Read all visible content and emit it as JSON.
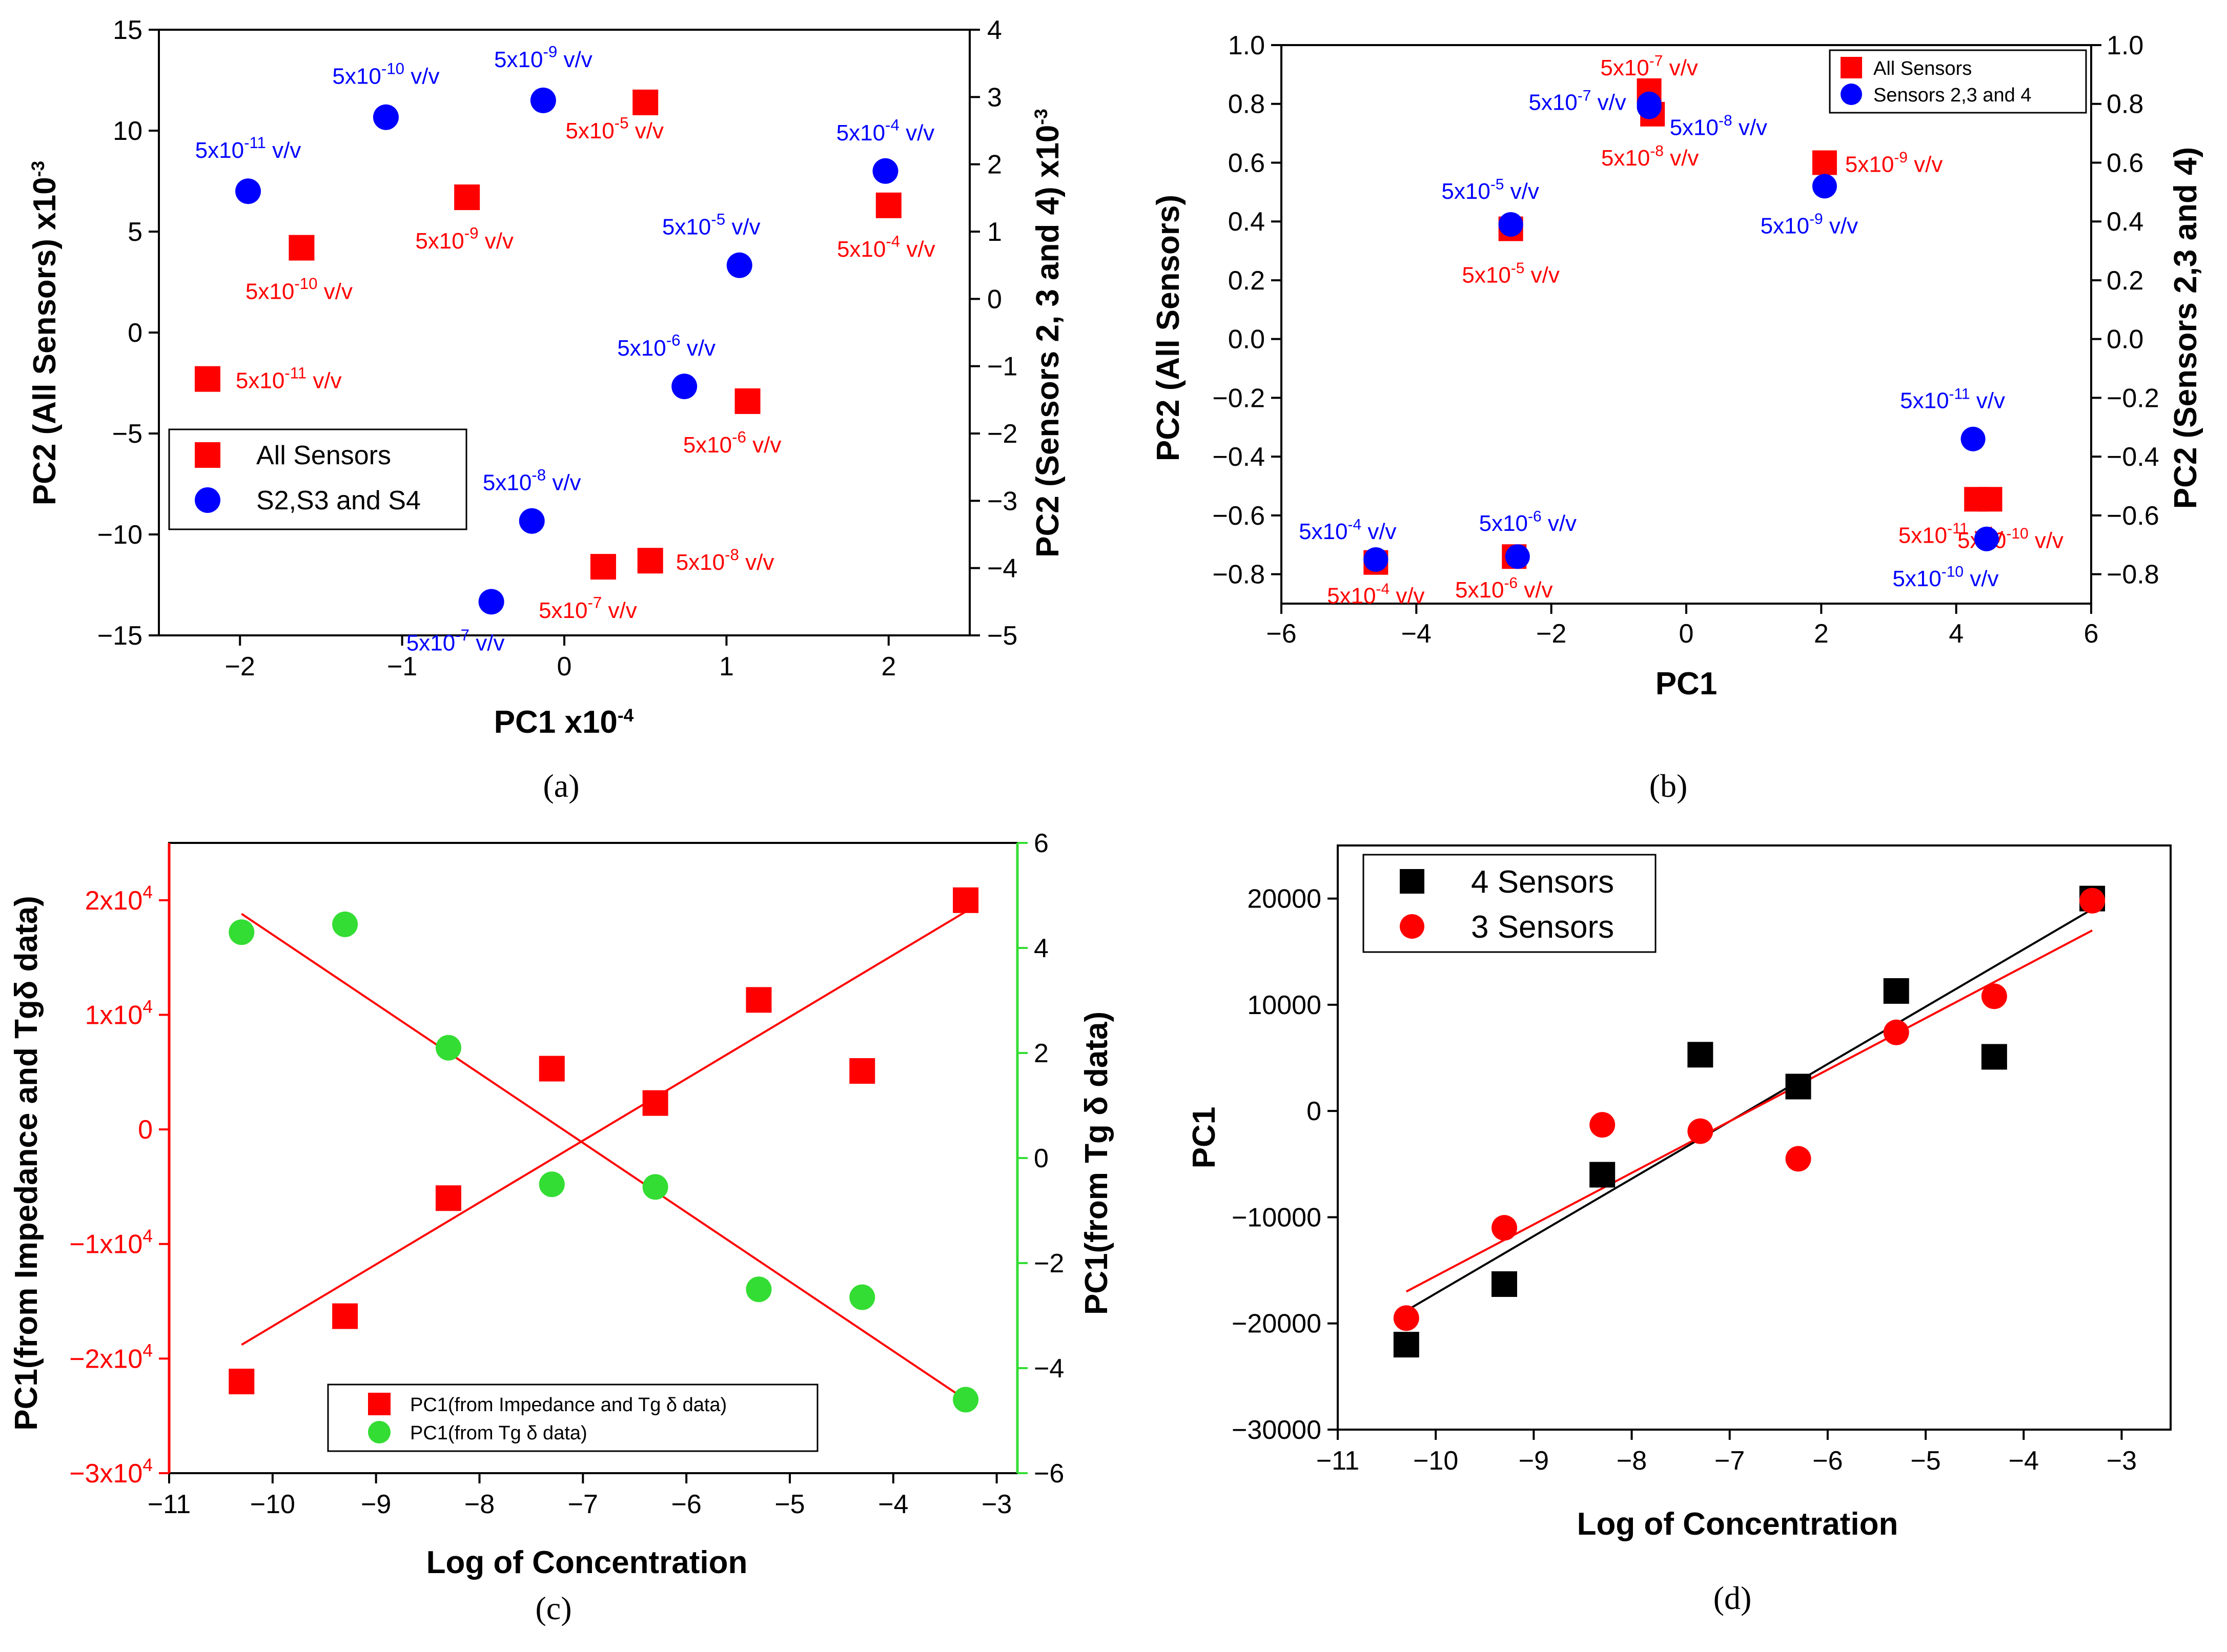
{
  "chart_data": [
    {
      "panel": "a",
      "type": "scatter",
      "caption": "(a)",
      "xlabel": "PC1 x10",
      "xlabel_exp": "-4",
      "ylabel": "PC2 (All Sensors) x10",
      "ylabel_exp": "-3",
      "y2label": "PC2 (Sensors 2, 3 and 4) x10",
      "y2label_exp": "-3",
      "xlim": [
        -2.5,
        2.5
      ],
      "ylim": [
        -15,
        15
      ],
      "y2lim": [
        -5,
        4
      ],
      "xticks": [
        -2,
        -1,
        0,
        1,
        2
      ],
      "yticks": [
        -15,
        -10,
        -5,
        0,
        5,
        10,
        15
      ],
      "y2ticks": [
        -5,
        -4,
        -3,
        -2,
        -1,
        0,
        1,
        2,
        3,
        4
      ],
      "legend": [
        "All Sensors",
        "S2,S3 and S4"
      ],
      "series": [
        {
          "name": "All Sensors",
          "marker": "square",
          "color": "#ff0000",
          "axis": "left",
          "points": [
            {
              "x": -2.2,
              "y": -2.3,
              "label": "5x10",
              "exp": "-11",
              "unit": " v/v"
            },
            {
              "x": -1.62,
              "y": 4.2,
              "label": "5x10",
              "exp": "-10",
              "unit": " v/v"
            },
            {
              "x": -0.6,
              "y": 6.7,
              "label": "5x10",
              "exp": "-9",
              "unit": " v/v"
            },
            {
              "x": 0.5,
              "y": 11.4,
              "label": "5x10",
              "exp": "-5",
              "unit": " v/v"
            },
            {
              "x": 2.0,
              "y": 6.3,
              "label": "5x10",
              "exp": "-4",
              "unit": " v/v"
            },
            {
              "x": 1.13,
              "y": -3.4,
              "label": "5x10",
              "exp": "-6",
              "unit": " v/v"
            },
            {
              "x": 0.24,
              "y": -11.6,
              "label": "5x10",
              "exp": "-7",
              "unit": " v/v"
            },
            {
              "x": 0.53,
              "y": -11.3,
              "label": "5x10",
              "exp": "-8",
              "unit": " v/v"
            }
          ]
        },
        {
          "name": "S2,S3 and S4",
          "marker": "circle",
          "color": "#0000ff",
          "axis": "right",
          "points": [
            {
              "x": -1.95,
              "y": 1.6,
              "label": "5x10",
              "exp": "-11",
              "unit": " v/v"
            },
            {
              "x": -1.1,
              "y": 2.7,
              "label": "5x10",
              "exp": "-10",
              "unit": " v/v"
            },
            {
              "x": -0.13,
              "y": 2.95,
              "label": "5x10",
              "exp": "-9",
              "unit": " v/v"
            },
            {
              "x": 1.98,
              "y": 1.9,
              "label": "5x10",
              "exp": "-4",
              "unit": " v/v"
            },
            {
              "x": 1.08,
              "y": 0.5,
              "label": "5x10",
              "exp": "-5",
              "unit": " v/v"
            },
            {
              "x": 0.74,
              "y": -1.3,
              "label": "5x10",
              "exp": "-6",
              "unit": " v/v"
            },
            {
              "x": -0.2,
              "y": -3.3,
              "label": "5x10",
              "exp": "-8",
              "unit": " v/v"
            },
            {
              "x": -0.45,
              "y": -4.5,
              "label": "5x10",
              "exp": "-7",
              "unit": " v/v"
            }
          ]
        }
      ]
    },
    {
      "panel": "b",
      "type": "scatter",
      "caption": "(b)",
      "xlabel": "PC1",
      "ylabel": "PC2 (All Sensors)",
      "y2label": "PC2 (Sensors 2,3 and 4)",
      "xlim": [
        -6,
        6
      ],
      "ylim": [
        -0.9,
        1.0
      ],
      "y2lim": [
        -0.9,
        1.0
      ],
      "xticks": [
        -6,
        -4,
        -2,
        0,
        2,
        4,
        6
      ],
      "yticks": [
        "1.0",
        "0.8",
        "0.6",
        "0.4",
        "0.2",
        "0.0",
        "-0.2",
        "-0.4",
        "-0.6",
        "-0.8"
      ],
      "y2ticks": [
        "1.0",
        "0.8",
        "0.6",
        "0.4",
        "0.2",
        "0.0",
        "-0.2",
        "-0.4",
        "-0.6",
        "-0.8"
      ],
      "legend": [
        "All Sensors",
        "Sensors 2,3 and 4"
      ],
      "series": [
        {
          "name": "All Sensors",
          "marker": "square",
          "color": "#ff0000",
          "points": [
            {
              "x": -0.55,
              "y": 0.845,
              "label": "5x10",
              "exp": "-7",
              "unit": " v/v"
            },
            {
              "x": -0.5,
              "y": 0.765,
              "label": "5x10",
              "exp": "-8",
              "unit": " v/v"
            },
            {
              "x": 2.05,
              "y": 0.6,
              "label": "5x10",
              "exp": "-9",
              "unit": " v/v"
            },
            {
              "x": -2.6,
              "y": 0.375,
              "label": "5x10",
              "exp": "-5",
              "unit": " v/v"
            },
            {
              "x": -4.6,
              "y": -0.76,
              "label": "5x10",
              "exp": "-4",
              "unit": " v/v"
            },
            {
              "x": -2.55,
              "y": -0.74,
              "label": "5x10",
              "exp": "-6",
              "unit": " v/v"
            },
            {
              "x": 4.3,
              "y": -0.545,
              "label": "5x10",
              "exp": "-11",
              "unit": " v/v"
            },
            {
              "x": 4.5,
              "y": -0.545,
              "label": "5x10",
              "exp": "-10",
              "unit": " v/v"
            }
          ]
        },
        {
          "name": "Sensors 2,3 and 4",
          "marker": "circle",
          "color": "#0000ff",
          "points": [
            {
              "x": -0.55,
              "y": 0.8,
              "label": "5x10",
              "exp": "-7",
              "unit": " v/v"
            },
            {
              "x": -0.55,
              "y": 0.79,
              "label": "5x10",
              "exp": "-8",
              "unit": " v/v"
            },
            {
              "x": 2.05,
              "y": 0.52,
              "label": "5x10",
              "exp": "-9",
              "unit": " v/v"
            },
            {
              "x": -2.6,
              "y": 0.39,
              "label": "5x10",
              "exp": "-5",
              "unit": " v/v"
            },
            {
              "x": -4.6,
              "y": -0.75,
              "label": "5x10",
              "exp": "-4",
              "unit": " v/v"
            },
            {
              "x": -2.5,
              "y": -0.74,
              "label": "5x10",
              "exp": "-6",
              "unit": " v/v"
            },
            {
              "x": 4.25,
              "y": -0.34,
              "label": "5x10",
              "exp": "-11",
              "unit": " v/v"
            },
            {
              "x": 4.45,
              "y": -0.68,
              "label": "5x10",
              "exp": "-10",
              "unit": " v/v"
            }
          ]
        }
      ]
    },
    {
      "panel": "c",
      "type": "scatter",
      "caption": "(c)",
      "xlabel": "Log of Concentration",
      "ylabel": "PC1(from Impedance and Tgδ data)",
      "y2label": "PC1(from Tg δ data)",
      "xlim": [
        -11,
        -2.8
      ],
      "ylim": [
        -30000,
        25000
      ],
      "y2lim": [
        -6,
        6
      ],
      "xticks": [
        -11,
        -10,
        -9,
        -8,
        -7,
        -6,
        -5,
        -4,
        -3
      ],
      "yticks": [
        {
          "base": "2x10",
          "exp": "4"
        },
        {
          "base": "1x10",
          "exp": "4"
        },
        {
          "base": "0",
          "exp": ""
        },
        {
          "base": "-1x10",
          "exp": "4"
        },
        {
          "base": "-2x10",
          "exp": "4"
        },
        {
          "base": "-3x10",
          "exp": "4"
        }
      ],
      "y2ticks": [
        6,
        4,
        2,
        0,
        -2,
        -4,
        -6
      ],
      "left_axis_color": "#ff0000",
      "right_axis_color": "#33dd33",
      "legend": [
        "PC1(from Impedance and Tg δ data)",
        "PC1(from Tg δ data)"
      ],
      "series": [
        {
          "name": "PC1(from Impedance and Tg δ data)",
          "marker": "square",
          "color": "#ff0000",
          "axis": "left",
          "x": [
            -10.3,
            -9.3,
            -8.3,
            -7.3,
            -6.3,
            -5.3,
            -4.3,
            -3.3
          ],
          "y": [
            -22000,
            -16300,
            -6000,
            5300,
            2300,
            11300,
            5100,
            20000
          ],
          "fit": [
            [
              -10.3,
              -18800
            ],
            [
              -3.3,
              19000
            ]
          ]
        },
        {
          "name": "PC1(from Tg δ data)",
          "marker": "circle",
          "color": "#33dd33",
          "axis": "right",
          "x": [
            -10.3,
            -9.3,
            -8.3,
            -7.3,
            -6.3,
            -5.3,
            -4.3,
            -3.3
          ],
          "y": [
            4.3,
            4.45,
            2.1,
            -0.5,
            -0.55,
            -2.5,
            -2.65,
            -4.6
          ],
          "fit": [
            [
              -10.3,
              4.65
            ],
            [
              -3.3,
              -4.6
            ]
          ]
        }
      ]
    },
    {
      "panel": "d",
      "type": "scatter",
      "caption": "(d)",
      "xlabel": "Log of Concentration",
      "ylabel": "PC1",
      "xlim": [
        -11,
        -2.5
      ],
      "ylim": [
        -30000,
        25000
      ],
      "xticks": [
        -11,
        -10,
        -9,
        -8,
        -7,
        -6,
        -5,
        -4,
        -3
      ],
      "yticks": [
        20000,
        10000,
        0,
        -10000,
        -20000,
        -30000
      ],
      "legend": [
        "4 Sensors",
        "3 Sensors"
      ],
      "series": [
        {
          "name": "4 Sensors",
          "marker": "square",
          "color": "#000000",
          "x": [
            -10.3,
            -9.3,
            -8.3,
            -7.3,
            -6.3,
            -5.3,
            -4.3,
            -3.3
          ],
          "y": [
            -22000,
            -16300,
            -6000,
            5300,
            2300,
            11300,
            5100,
            20000
          ],
          "fit": [
            [
              -10.3,
              -18800
            ],
            [
              -3.3,
              19000
            ]
          ]
        },
        {
          "name": "3 Sensors",
          "marker": "circle",
          "color": "#ff0000",
          "x": [
            -10.3,
            -9.3,
            -8.3,
            -7.3,
            -6.3,
            -5.3,
            -4.3,
            -3.3
          ],
          "y": [
            -19500,
            -11000,
            -1300,
            -1900,
            -4500,
            7400,
            10800,
            19800
          ],
          "fit": [
            [
              -10.3,
              -17000
            ],
            [
              -3.3,
              17000
            ]
          ]
        }
      ]
    }
  ]
}
